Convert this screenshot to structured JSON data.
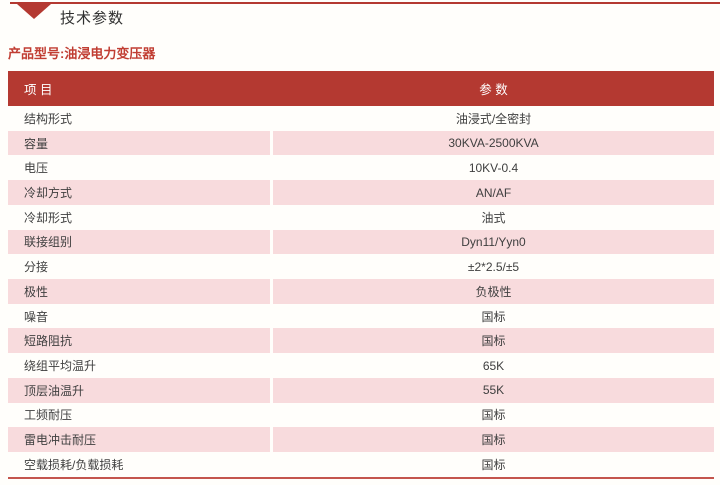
{
  "header": {
    "section_title": "技术参数"
  },
  "product": {
    "label": "产品型号:油浸电力变压器"
  },
  "table": {
    "col_item": "项 目",
    "col_param": "参 数",
    "rows": [
      {
        "item": "结构形式",
        "value": "油浸式/全密封"
      },
      {
        "item": "容量",
        "value": "30KVA-2500KVA"
      },
      {
        "item": "电压",
        "value": "10KV-0.4"
      },
      {
        "item": "冷却方式",
        "value": "AN/AF"
      },
      {
        "item": "冷却形式",
        "value": "油式"
      },
      {
        "item": "联接组别",
        "value": "Dyn11/Yyn0"
      },
      {
        "item": "分接",
        "value": "±2*2.5/±5"
      },
      {
        "item": "极性",
        "value": "负极性"
      },
      {
        "item": "噪音",
        "value": "国标"
      },
      {
        "item": "短路阻抗",
        "value": "国标"
      },
      {
        "item": "绕组平均温升",
        "value": "65K"
      },
      {
        "item": "顶层油温升",
        "value": "55K"
      },
      {
        "item": "工频耐压",
        "value": "国标"
      },
      {
        "item": "雷电冲击耐压",
        "value": "国标"
      },
      {
        "item": "空载损耗/负载损耗",
        "value": "国标"
      }
    ]
  },
  "colors": {
    "brand_red": "#B43931",
    "accent_text_red": "#C13E33",
    "row_pink": "#F8DBDD",
    "page_bg": "#FFFEFB",
    "bottom_rule": "#C4554D"
  }
}
